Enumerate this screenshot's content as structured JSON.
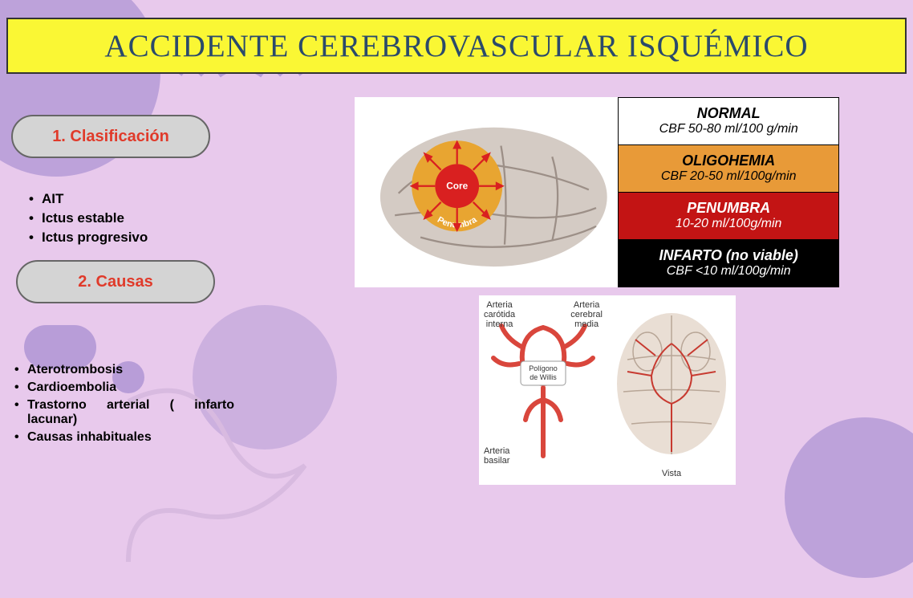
{
  "title": {
    "text": "ACCIDENTE CEREBROVASCULAR ISQUÉMICO",
    "color": "#2b4a6b",
    "bg_color": "#faf734"
  },
  "background": {
    "base_color": "#e8c9ec",
    "shape_color": "#b89dd8"
  },
  "sections": [
    {
      "label": "1. Clasificación",
      "color": "#e03a2a",
      "bg_color": "#d4d4d4"
    },
    {
      "label": "2. Causas",
      "color": "#e03a2a",
      "bg_color": "#d4d4d4"
    }
  ],
  "classification_items": [
    "AIT",
    "Ictus estable",
    "Ictus progresivo"
  ],
  "cause_items": [
    "Aterotrombosis",
    "Cardioembolia",
    "Trastorno arterial ( infarto lacunar)",
    "Causas inhabituales"
  ],
  "brain_diagram": {
    "core_label": "Core",
    "core_color": "#d92020",
    "penumbra_label": "Penumbra",
    "penumbra_color": "#e8a531",
    "brain_fill": "#d4cbc4",
    "groove_color": "#9c8f87"
  },
  "cbf_table": [
    {
      "label": "NORMAL",
      "value": "CBF 50-80 ml/100 g/min",
      "bg": "#ffffff",
      "text": "#000000"
    },
    {
      "label": "OLIGOHEMIA",
      "value": "CBF 20-50 ml/100g/min",
      "bg": "#e89a38",
      "text": "#000000"
    },
    {
      "label": "PENUMBRA",
      "value": "10-20 ml/100g/min",
      "bg": "#c31414",
      "text": "#ffffff"
    },
    {
      "label": "INFARTO (no viable)",
      "value": "CBF <10 ml/100g/min",
      "bg": "#000000",
      "text": "#ffffff"
    }
  ],
  "willis_diagram": {
    "artery_color": "#d9463c",
    "labels": {
      "carotid": "Arteria\ncarótida\ninterna",
      "cerebral_media": "Arteria\ncerebral\nmedia",
      "willis": "Polígono\nde Willis",
      "basilar": "Arteria\nbasilar",
      "vista": "Vista"
    }
  }
}
